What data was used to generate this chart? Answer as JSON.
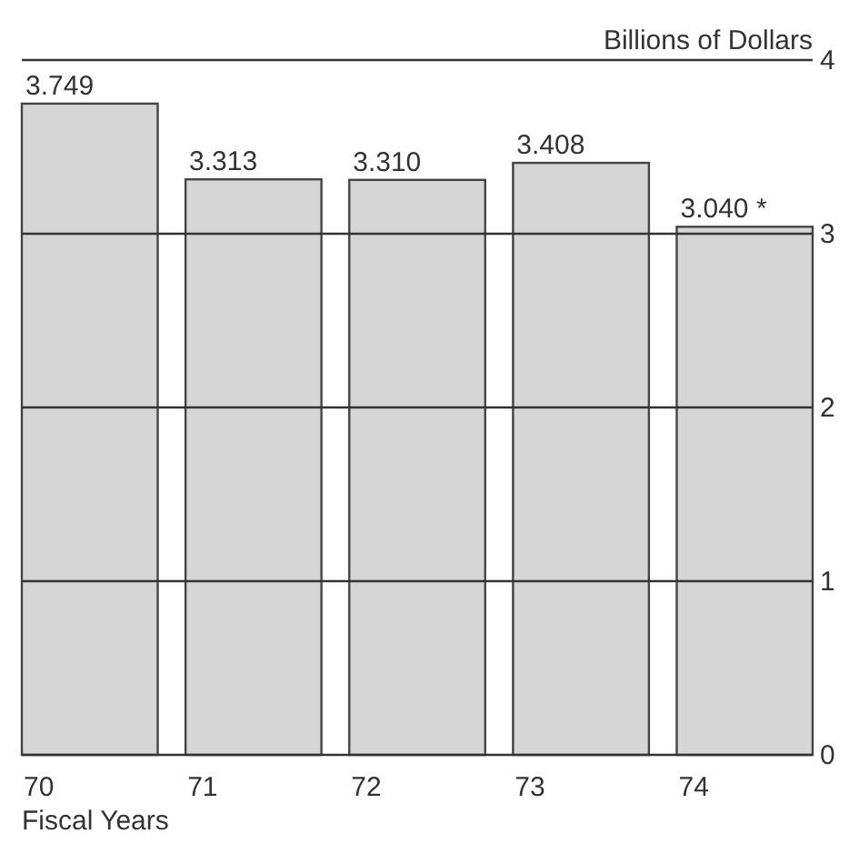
{
  "chart_data": {
    "type": "bar",
    "ylabel": "Billions of Dollars",
    "xlabel": "Fiscal Years",
    "categories": [
      "70",
      "71",
      "72",
      "73",
      "74"
    ],
    "values": [
      3.749,
      3.313,
      3.31,
      3.408,
      3.04
    ],
    "value_labels": [
      "3.749",
      "3.313",
      "3.310",
      "3.408",
      "3.040 *"
    ],
    "color": "#d6d6d6",
    "ylim": [
      0,
      4
    ],
    "yticks": [
      0,
      1,
      2,
      3,
      4
    ],
    "grid": "y"
  }
}
